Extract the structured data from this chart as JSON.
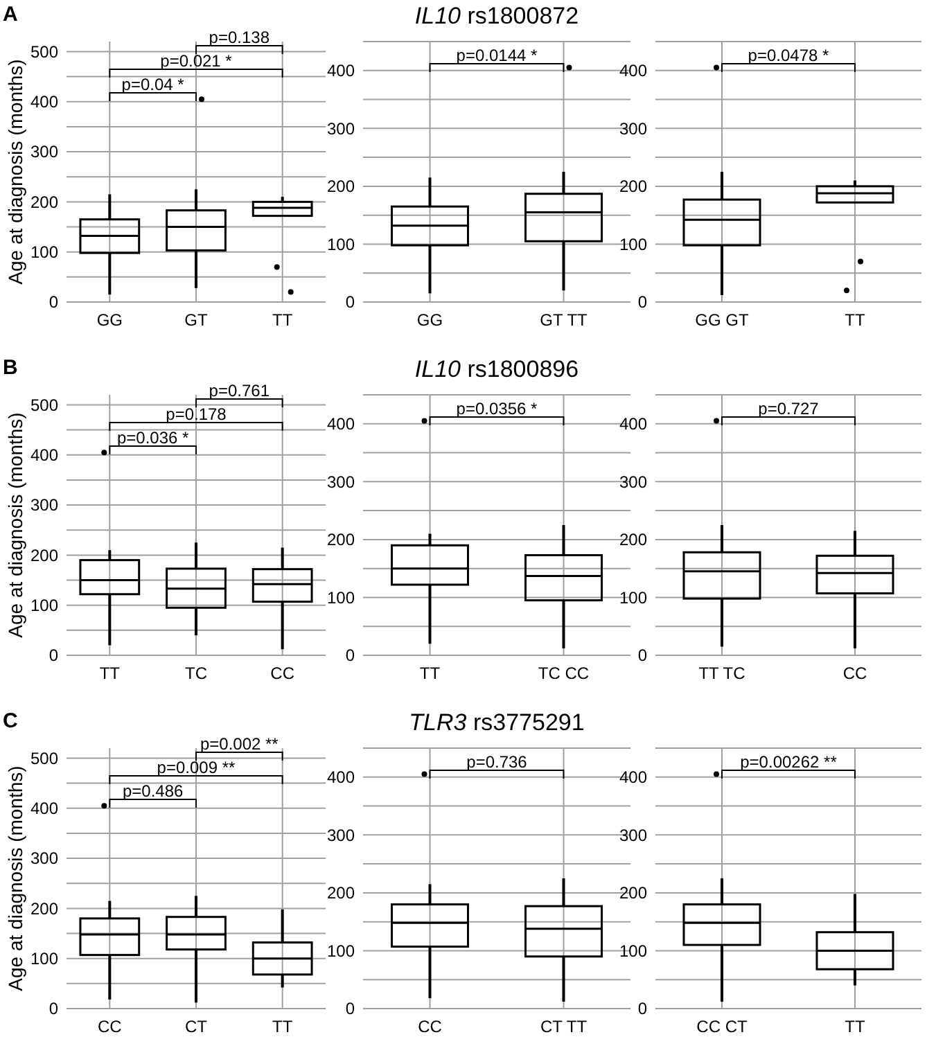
{
  "chart_data": [
    {
      "type": "box",
      "title": "A",
      "ylabel": "Age at diagnosis (months)",
      "categories": [
        "GG",
        "GT",
        "TT"
      ],
      "boxes": [
        {
          "low": 15,
          "q1": 98,
          "median": 132,
          "q3": 165,
          "high": 215
        },
        {
          "low": 28,
          "q1": 103,
          "median": 150,
          "q3": 183,
          "high": 225,
          "outliers": [
            405
          ]
        },
        {
          "low": 172,
          "q1": 172,
          "median": 188,
          "q3": 200,
          "high": 210,
          "outliers": [
            70,
            20
          ]
        }
      ],
      "ylim": [
        0,
        520
      ],
      "yticks": [
        0,
        {
          "value": 50,
          "label": null
        },
        100,
        {
          "value": 150,
          "label": null
        },
        200,
        {
          "value": 250,
          "label": null
        },
        300,
        {
          "value": 350,
          "label": null
        },
        400,
        {
          "value": 450,
          "label": null
        },
        500
      ],
      "grid": true,
      "annotations": [
        "p=0.04 *",
        "p=0.021 *",
        "p=0.138"
      ]
    },
    {
      "type": "box",
      "title": "IL10 rs1800872",
      "categories": [
        "GG",
        "GT TT"
      ],
      "boxes": [
        {
          "low": 15,
          "q1": 98,
          "median": 132,
          "q3": 165,
          "high": 215
        },
        {
          "low": 20,
          "q1": 105,
          "median": 155,
          "q3": 187,
          "high": 225,
          "outliers": [
            405
          ]
        }
      ],
      "ylim": [
        0,
        450
      ],
      "yticks": [
        0,
        {
          "value": 50,
          "label": null
        },
        100,
        {
          "value": 150,
          "label": null
        },
        200,
        {
          "value": 250,
          "label": null
        },
        300,
        {
          "value": 350,
          "label": null
        },
        400,
        {
          "value": 450,
          "label": null
        }
      ],
      "grid": true,
      "annotations": [
        "p=0.0144 *"
      ]
    },
    {
      "type": "box",
      "categories": [
        "GG GT",
        "TT"
      ],
      "boxes": [
        {
          "low": 12,
          "q1": 98,
          "median": 142,
          "q3": 177,
          "high": 225,
          "outliers": [
            405
          ]
        },
        {
          "low": 172,
          "q1": 172,
          "median": 188,
          "q3": 200,
          "high": 210,
          "outliers": [
            70,
            20
          ]
        }
      ],
      "ylim": [
        0,
        450
      ],
      "yticks": [
        0,
        {
          "value": 50,
          "label": null
        },
        100,
        {
          "value": 150,
          "label": null
        },
        200,
        {
          "value": 250,
          "label": null
        },
        300,
        {
          "value": 350,
          "label": null
        },
        400,
        {
          "value": 450,
          "label": null
        }
      ],
      "grid": true,
      "annotations": [
        "p=0.0478 *"
      ]
    },
    {
      "type": "box",
      "title": "B",
      "ylabel": "Age at diagnosis (months)",
      "categories": [
        "TT",
        "TC",
        "CC"
      ],
      "boxes": [
        {
          "low": 20,
          "q1": 122,
          "median": 150,
          "q3": 190,
          "high": 210,
          "outliers": [
            405
          ]
        },
        {
          "low": 40,
          "q1": 95,
          "median": 133,
          "q3": 173,
          "high": 225
        },
        {
          "low": 12,
          "q1": 107,
          "median": 142,
          "q3": 172,
          "high": 215
        }
      ],
      "ylim": [
        0,
        520
      ],
      "yticks": [
        0,
        {
          "value": 50,
          "label": null
        },
        100,
        {
          "value": 150,
          "label": null
        },
        200,
        {
          "value": 250,
          "label": null
        },
        300,
        {
          "value": 350,
          "label": null
        },
        400,
        {
          "value": 450,
          "label": null
        },
        500
      ],
      "grid": true,
      "annotations": [
        "p=0.036 *",
        "p=0.178",
        "p=0.761"
      ]
    },
    {
      "type": "box",
      "title": "IL10 rs1800896",
      "categories": [
        "TT",
        "TC CC"
      ],
      "boxes": [
        {
          "low": 20,
          "q1": 122,
          "median": 150,
          "q3": 190,
          "high": 210,
          "outliers": [
            405
          ]
        },
        {
          "low": 12,
          "q1": 95,
          "median": 137,
          "q3": 173,
          "high": 225
        }
      ],
      "ylim": [
        0,
        450
      ],
      "yticks": [
        0,
        {
          "value": 50,
          "label": null
        },
        100,
        {
          "value": 150,
          "label": null
        },
        200,
        {
          "value": 250,
          "label": null
        },
        300,
        {
          "value": 350,
          "label": null
        },
        400,
        {
          "value": 450,
          "label": null
        }
      ],
      "grid": true,
      "annotations": [
        "p=0.0356 *"
      ]
    },
    {
      "type": "box",
      "categories": [
        "TT TC",
        "CC"
      ],
      "boxes": [
        {
          "low": 15,
          "q1": 98,
          "median": 145,
          "q3": 178,
          "high": 225,
          "outliers": [
            405
          ]
        },
        {
          "low": 12,
          "q1": 107,
          "median": 142,
          "q3": 172,
          "high": 215
        }
      ],
      "ylim": [
        0,
        450
      ],
      "yticks": [
        0,
        {
          "value": 50,
          "label": null
        },
        100,
        {
          "value": 150,
          "label": null
        },
        200,
        {
          "value": 250,
          "label": null
        },
        300,
        {
          "value": 350,
          "label": null
        },
        400,
        {
          "value": 450,
          "label": null
        }
      ],
      "grid": true,
      "annotations": [
        "p=0.727"
      ]
    },
    {
      "type": "box",
      "title": "C",
      "ylabel": "Age at diagnosis (months)",
      "categories": [
        "CC",
        "CT",
        "TT"
      ],
      "boxes": [
        {
          "low": 18,
          "q1": 107,
          "median": 148,
          "q3": 180,
          "high": 215,
          "outliers": [
            405
          ]
        },
        {
          "low": 12,
          "q1": 118,
          "median": 148,
          "q3": 183,
          "high": 225
        },
        {
          "low": 42,
          "q1": 68,
          "median": 100,
          "q3": 132,
          "high": 198
        }
      ],
      "ylim": [
        0,
        520
      ],
      "yticks": [
        0,
        {
          "value": 50,
          "label": null
        },
        100,
        {
          "value": 150,
          "label": null
        },
        200,
        {
          "value": 250,
          "label": null
        },
        300,
        {
          "value": 350,
          "label": null
        },
        400,
        {
          "value": 450,
          "label": null
        },
        500
      ],
      "grid": true,
      "annotations": [
        "p=0.486",
        "p=0.009 **",
        "p=0.002 **"
      ]
    },
    {
      "type": "box",
      "title": "TLR3 rs3775291",
      "categories": [
        "CC",
        "CT TT"
      ],
      "boxes": [
        {
          "low": 18,
          "q1": 107,
          "median": 148,
          "q3": 180,
          "high": 215,
          "outliers": [
            405
          ]
        },
        {
          "low": 12,
          "q1": 90,
          "median": 138,
          "q3": 177,
          "high": 225
        }
      ],
      "ylim": [
        0,
        450
      ],
      "yticks": [
        0,
        {
          "value": 50,
          "label": null
        },
        100,
        {
          "value": 150,
          "label": null
        },
        200,
        {
          "value": 250,
          "label": null
        },
        300,
        {
          "value": 350,
          "label": null
        },
        400,
        {
          "value": 450,
          "label": null
        }
      ],
      "grid": true,
      "annotations": [
        "p=0.736"
      ]
    },
    {
      "type": "box",
      "categories": [
        "CC CT",
        "TT"
      ],
      "boxes": [
        {
          "low": 12,
          "q1": 110,
          "median": 148,
          "q3": 180,
          "high": 225,
          "outliers": [
            405
          ]
        },
        {
          "low": 40,
          "q1": 68,
          "median": 100,
          "q3": 132,
          "high": 198
        }
      ],
      "ylim": [
        0,
        450
      ],
      "yticks": [
        0,
        {
          "value": 50,
          "label": null
        },
        100,
        {
          "value": 150,
          "label": null
        },
        200,
        {
          "value": 250,
          "label": null
        },
        300,
        {
          "value": 350,
          "label": null
        },
        400,
        {
          "value": 450,
          "label": null
        }
      ],
      "grid": true,
      "annotations": [
        "p=0.00262 **"
      ]
    }
  ]
}
